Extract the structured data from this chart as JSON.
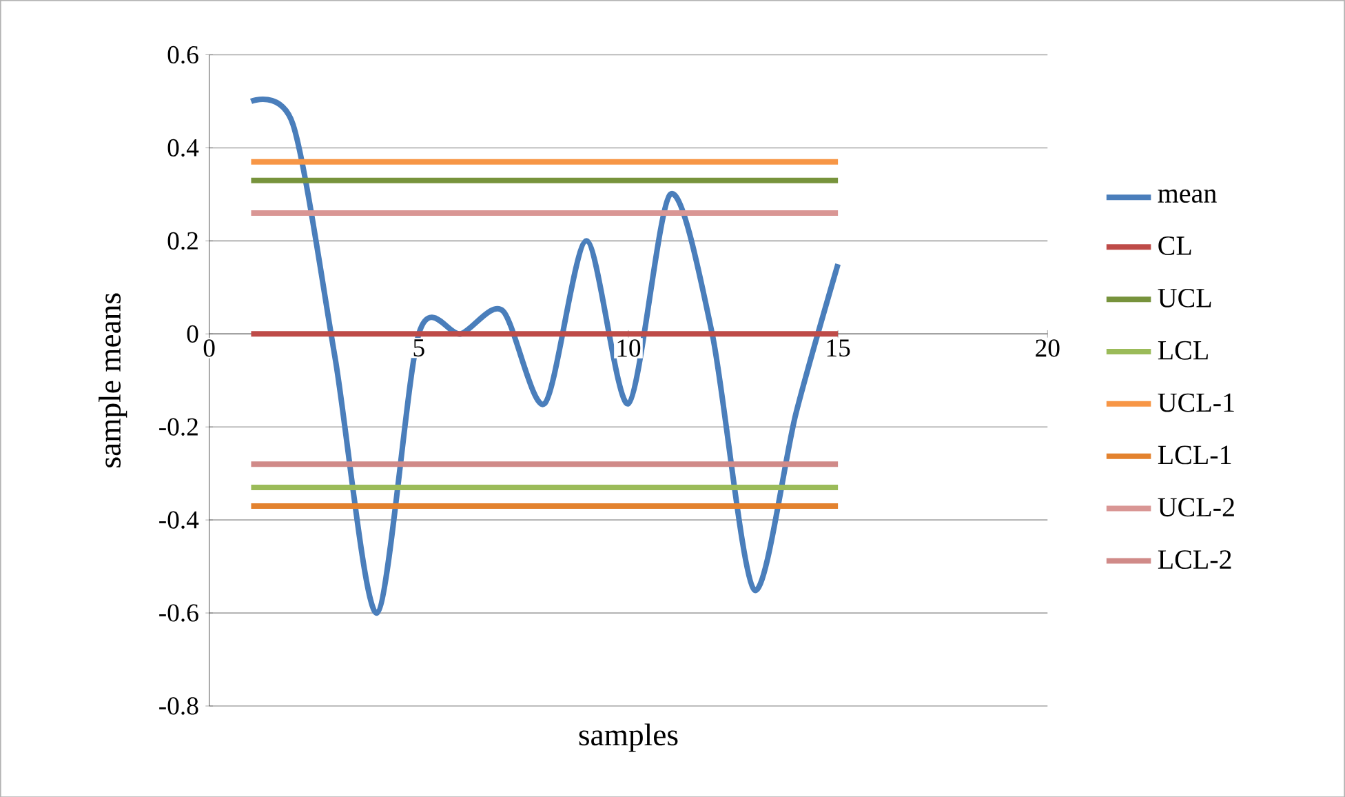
{
  "chart_data": {
    "type": "line",
    "xlabel": "samples",
    "ylabel": "sample means",
    "xlim": [
      0,
      20
    ],
    "xticks": [
      0,
      5,
      10,
      15,
      20
    ],
    "ylim": [
      -0.8,
      0.6
    ],
    "yticks": [
      -0.8,
      -0.6,
      -0.4,
      -0.2,
      0,
      0.2,
      0.4,
      0.6
    ],
    "grid": "y",
    "legend": "right",
    "marker": "none",
    "line_style": "solid",
    "series": [
      {
        "name": "mean",
        "color": "#4a7ebb",
        "x": [
          1,
          2,
          3,
          4,
          5,
          6,
          7,
          8,
          9,
          10,
          11,
          12,
          13,
          14,
          15
        ],
        "values": [
          0.5,
          0.45,
          -0.05,
          -0.6,
          0.0,
          0.0,
          0.05,
          -0.15,
          0.2,
          -0.15,
          0.3,
          0.0,
          -0.55,
          -0.17,
          0.15
        ]
      },
      {
        "name": "CL",
        "color": "#be4b48",
        "x": [
          1,
          15
        ],
        "values": [
          0,
          0
        ]
      },
      {
        "name": "UCL",
        "color": "#77933c",
        "x": [
          1,
          15
        ],
        "values": [
          0.33,
          0.33
        ]
      },
      {
        "name": "LCL",
        "color": "#9bbb59",
        "x": [
          1,
          15
        ],
        "values": [
          -0.33,
          -0.33
        ]
      },
      {
        "name": "UCL-1",
        "color": "#f79646",
        "x": [
          1,
          15
        ],
        "values": [
          0.37,
          0.37
        ]
      },
      {
        "name": "LCL-1",
        "color": "#e3822e",
        "x": [
          1,
          15
        ],
        "values": [
          -0.37,
          -0.37
        ]
      },
      {
        "name": "UCL-2",
        "color": "#d99694",
        "x": [
          1,
          15
        ],
        "values": [
          0.26,
          0.26
        ]
      },
      {
        "name": "LCL-2",
        "color": "#d08a88",
        "x": [
          1,
          15
        ],
        "values": [
          -0.28,
          -0.28
        ]
      }
    ]
  }
}
